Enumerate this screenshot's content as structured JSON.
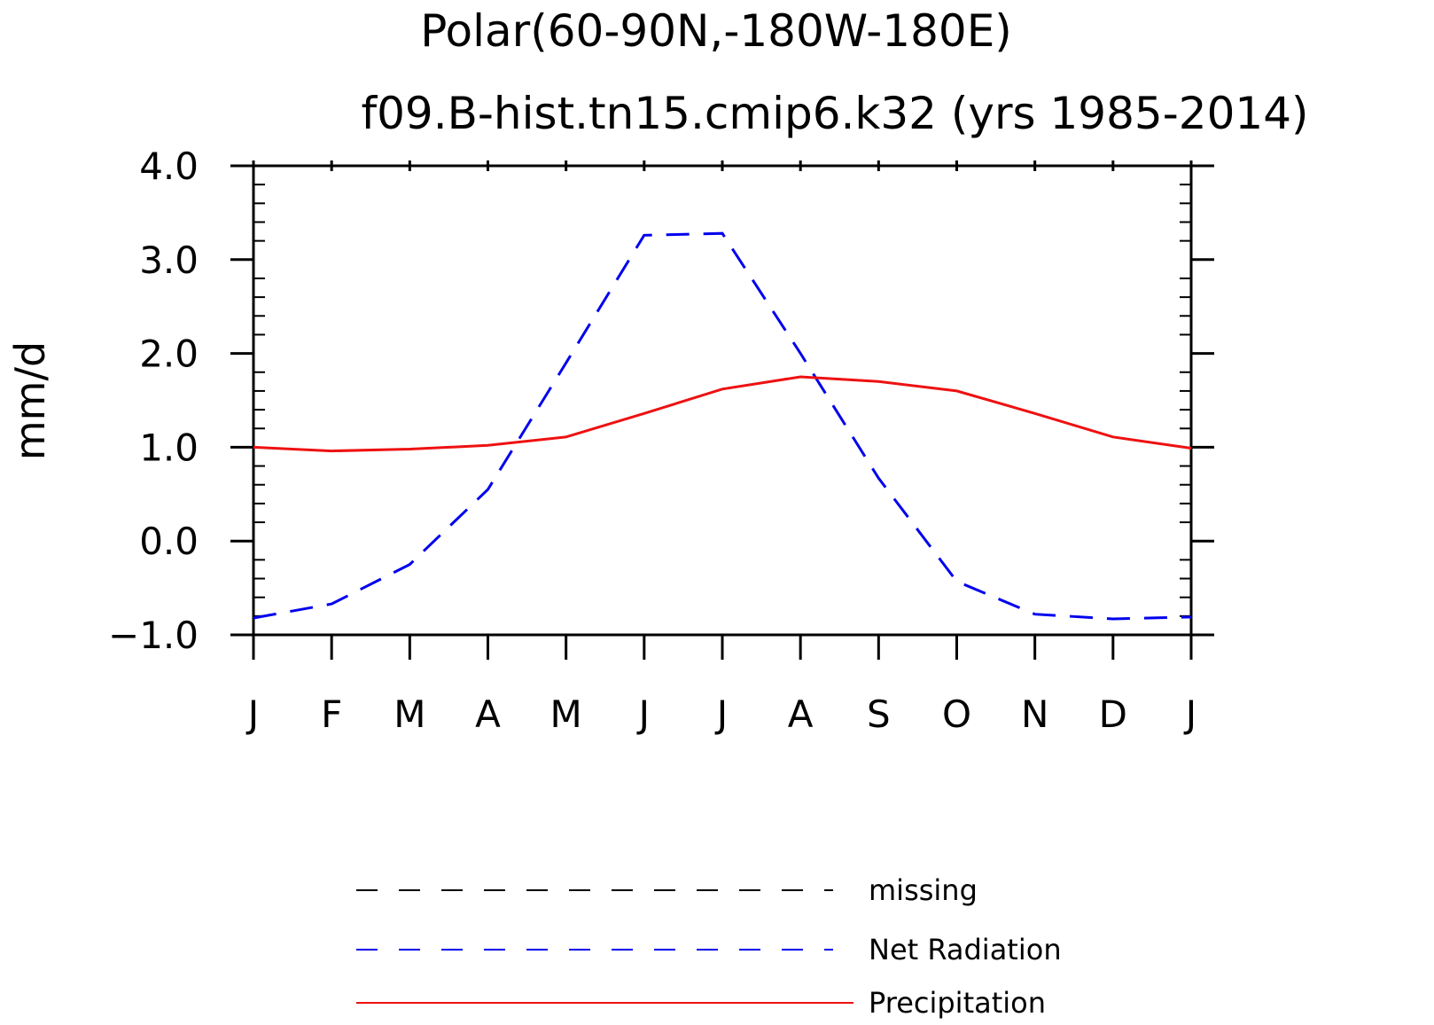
{
  "chart_data": {
    "type": "line",
    "title": "Polar(60-90N,-180W-180E)",
    "subtitle": "f09.B-hist.tn15.cmip6.k32 (yrs 1985-2014)",
    "xlabel": "",
    "ylabel": "mm/d",
    "categories": [
      "J",
      "F",
      "M",
      "A",
      "M",
      "J",
      "J",
      "A",
      "S",
      "O",
      "N",
      "D",
      "J"
    ],
    "ylim": [
      -1.0,
      4.0
    ],
    "yticks": [
      -1.0,
      0.0,
      1.0,
      2.0,
      3.0,
      4.0
    ],
    "ytick_labels": [
      "−1.0",
      "0.0",
      "1.0",
      "2.0",
      "3.0",
      "4.0"
    ],
    "grid": false,
    "legend_position": "bottom",
    "legend": [
      {
        "name": "missing",
        "color": "#000000",
        "style": "dashed"
      },
      {
        "name": "Net Radiation",
        "color": "#0000ee",
        "style": "dashed"
      },
      {
        "name": "Precipitation",
        "color": "#ee1111",
        "style": "solid"
      }
    ],
    "series": [
      {
        "name": "Net Radiation",
        "color": "#0000ee",
        "style": "dashed",
        "values": [
          -0.82,
          -0.67,
          -0.25,
          0.55,
          1.9,
          3.26,
          3.28,
          2.0,
          0.67,
          -0.43,
          -0.78,
          -0.83,
          -0.81
        ]
      },
      {
        "name": "Precipitation",
        "color": "#ee1111",
        "style": "solid",
        "values": [
          1.0,
          0.96,
          0.98,
          1.02,
          1.11,
          1.36,
          1.62,
          1.75,
          1.7,
          1.6,
          1.36,
          1.11,
          0.99
        ]
      }
    ]
  }
}
